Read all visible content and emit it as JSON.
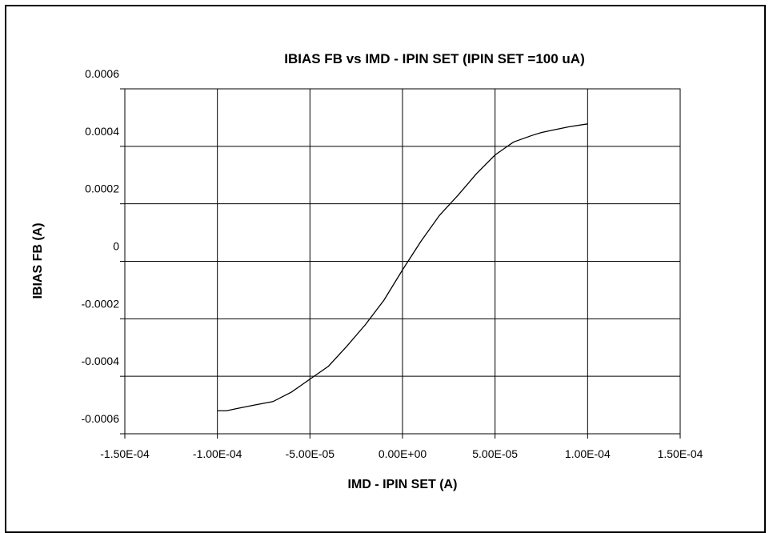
{
  "chart_data": {
    "type": "line",
    "title": "IBIAS FB vs IMD - IPIN SET (IPIN SET =100 uA)",
    "xlabel": "IMD - IPIN SET (A)",
    "ylabel": "IBIAS FB (A)",
    "xlim": [
      -0.00015,
      0.00015
    ],
    "ylim": [
      -0.0006,
      0.0006
    ],
    "x_ticks": [
      -0.00015,
      -0.0001,
      -5e-05,
      0,
      5e-05,
      0.0001,
      0.00015
    ],
    "x_tick_labels": [
      "-1.50E-04",
      "-1.00E-04",
      "-5.00E-05",
      "0.00E+00",
      "5.00E-05",
      "1.00E-04",
      "1.50E-04"
    ],
    "y_ticks": [
      0.0006,
      0.0004,
      0.0002,
      0,
      -0.0002,
      -0.0004,
      -0.0006
    ],
    "y_tick_labels": [
      "0.0006",
      "0.0004",
      "0.0002",
      "0",
      "-0.0002",
      "-0.0004",
      "-0.0006"
    ],
    "grid": true,
    "legend": "none",
    "series": [
      {
        "color": "#000000",
        "x": [
          -0.0001,
          -9.5e-05,
          -9e-05,
          -8e-05,
          -7e-05,
          -6e-05,
          -5e-05,
          -4e-05,
          -3e-05,
          -2e-05,
          -1e-05,
          0,
          1e-05,
          2e-05,
          3e-05,
          4e-05,
          5e-05,
          6e-05,
          7e-05,
          7.5e-05,
          8e-05,
          9e-05,
          0.0001
        ],
        "y": [
          -0.00052,
          -0.00052,
          -0.000513,
          -0.0005,
          -0.000488,
          -0.000455,
          -0.00041,
          -0.000365,
          -0.000295,
          -0.00022,
          -0.000135,
          -3e-05,
          7e-05,
          0.00016,
          0.00023,
          0.000305,
          0.00037,
          0.000415,
          0.000438,
          0.000448,
          0.000455,
          0.000468,
          0.000478
        ]
      }
    ]
  }
}
